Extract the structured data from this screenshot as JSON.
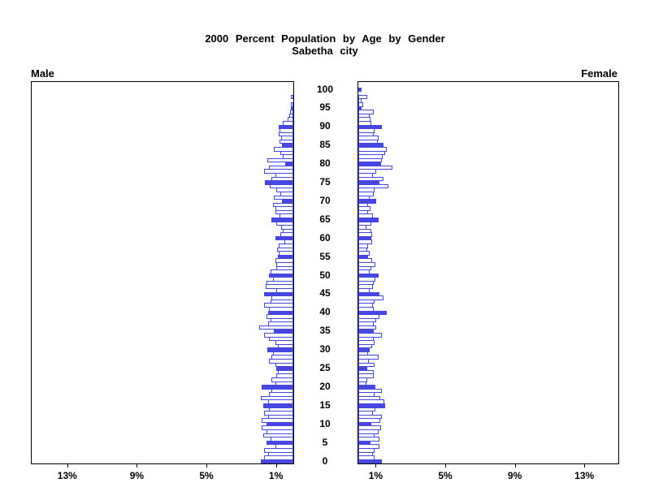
{
  "title": {
    "line1": "2000 Percent Population by Age by Gender",
    "line2": "Sabetha city"
  },
  "legend": {
    "male": "Male",
    "female": "Female"
  },
  "chart_data": {
    "type": "bar",
    "subtype": "population-pyramid",
    "title": "2000 Percent Population by Age by Gender",
    "subtitle": "Sabetha city",
    "left_label": "Male",
    "right_label": "Female",
    "age_min": 0,
    "age_max": 100,
    "age_axis_ticks": [
      0,
      5,
      10,
      15,
      20,
      25,
      30,
      35,
      40,
      45,
      50,
      55,
      60,
      65,
      70,
      75,
      80,
      85,
      90,
      95,
      100
    ],
    "pct_axis_ticks": [
      {
        "value": 1,
        "label": "1%"
      },
      {
        "value": 5,
        "label": "5%"
      },
      {
        "value": 9,
        "label": "9%"
      },
      {
        "value": 13,
        "label": "13%"
      }
    ],
    "xlim": [
      0,
      15
    ],
    "grid": false,
    "fill_rule": "bars for ages divisible by 5 are solid filled; other single-year bars are outlined only",
    "colors": {
      "bar_outline": "#4646e0",
      "bar_fill": "#4646e0",
      "bar_empty": "#ffffff",
      "frame": "#000000",
      "text": "#000000"
    },
    "series": [
      {
        "name": "Male",
        "side": "left",
        "unit": "percent of population",
        "values": [
          1.85,
          1.7,
          1.45,
          1.7,
          1.05,
          1.55,
          1.3,
          1.75,
          1.55,
          1.8,
          1.55,
          1.8,
          1.45,
          1.7,
          1.4,
          1.75,
          1.45,
          1.85,
          1.4,
          1.25,
          1.8,
          1.05,
          1.25,
          1.0,
          0.9,
          1.0,
          1.05,
          1.4,
          1.25,
          1.15,
          1.5,
          0.9,
          1.05,
          1.4,
          1.7,
          1.1,
          1.95,
          1.45,
          1.3,
          1.55,
          1.45,
          1.4,
          1.7,
          1.3,
          1.25,
          1.7,
          1.0,
          1.6,
          1.55,
          1.15,
          1.4,
          1.3,
          1.0,
          1.0,
          1.05,
          0.9,
          0.85,
          0.95,
          0.85,
          0.5,
          1.05,
          0.75,
          0.6,
          0.7,
          1.0,
          1.25,
          0.8,
          1.05,
          1.05,
          1.15,
          0.65,
          1.1,
          0.75,
          1.0,
          1.35,
          1.65,
          1.25,
          1.05,
          1.7,
          1.4,
          0.45,
          1.5,
          0.6,
          0.75,
          1.1,
          0.65,
          0.8,
          0.7,
          0.85,
          0.8,
          0.85,
          0.6,
          0.35,
          0.25,
          0.2,
          0.15,
          0.1,
          0,
          0.05,
          0,
          0
        ]
      },
      {
        "name": "Female",
        "side": "right",
        "unit": "percent of population",
        "values": [
          1.35,
          0.95,
          0.85,
          0.95,
          1.2,
          0.7,
          1.2,
          0.95,
          1.15,
          1.3,
          0.75,
          1.25,
          1.35,
          0.85,
          1.0,
          1.55,
          1.5,
          1.25,
          0.95,
          1.35,
          1.0,
          0.45,
          0.5,
          0.9,
          0.9,
          0.5,
          0.95,
          0.6,
          1.15,
          0.55,
          0.65,
          0.8,
          0.95,
          0.9,
          1.35,
          0.9,
          1.05,
          0.9,
          1.05,
          1.2,
          1.65,
          0.9,
          0.85,
          0.95,
          1.45,
          1.2,
          0.65,
          0.85,
          0.9,
          1.0,
          1.15,
          0.65,
          0.75,
          1.0,
          0.8,
          0.55,
          0.65,
          0.5,
          0.55,
          0.8,
          0.75,
          0.8,
          0.75,
          0.45,
          0.75,
          1.15,
          0.85,
          0.55,
          0.7,
          0.55,
          1.05,
          0.65,
          0.9,
          0.95,
          1.75,
          1.2,
          1.45,
          0.85,
          1.05,
          1.95,
          1.3,
          1.35,
          1.4,
          1.55,
          1.65,
          1.45,
          1.1,
          1.15,
          0.9,
          0.95,
          1.35,
          0.75,
          0.7,
          0.65,
          0.9,
          0.2,
          0.3,
          0.2,
          0.5,
          0,
          0.2
        ]
      }
    ]
  }
}
